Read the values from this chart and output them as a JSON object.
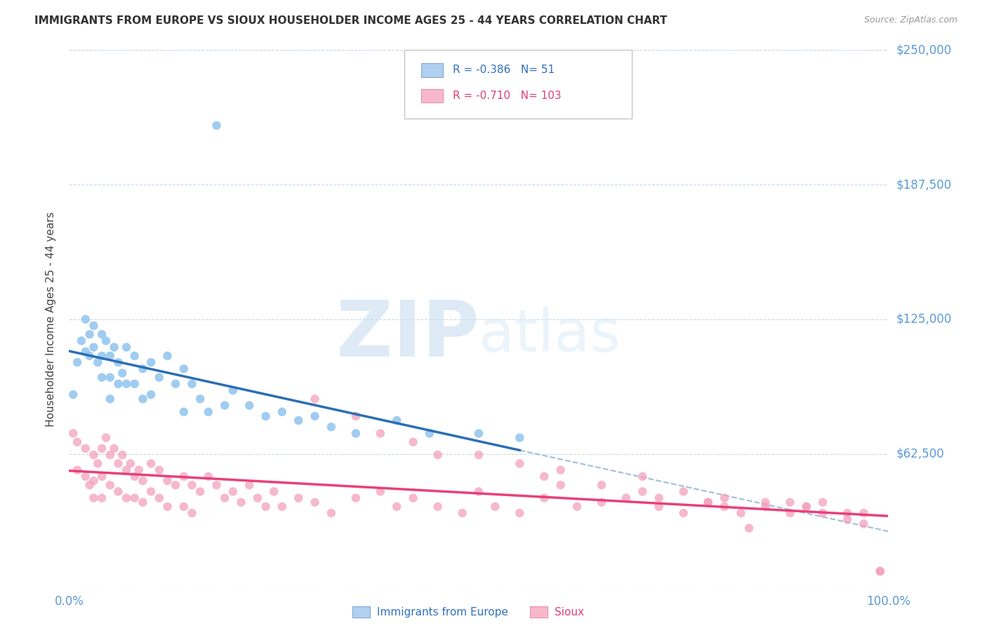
{
  "title": "IMMIGRANTS FROM EUROPE VS SIOUX HOUSEHOLDER INCOME AGES 25 - 44 YEARS CORRELATION CHART",
  "source": "Source: ZipAtlas.com",
  "ylabel": "Householder Income Ages 25 - 44 years",
  "yticks": [
    0,
    62500,
    125000,
    187500,
    250000
  ],
  "ytick_labels": [
    "",
    "$62,500",
    "$125,000",
    "$187,500",
    "$250,000"
  ],
  "xlim": [
    0.0,
    1.0
  ],
  "ylim": [
    0,
    250000
  ],
  "legend1_label": "Immigrants from Europe",
  "legend2_label": "Sioux",
  "R1": "-0.386",
  "N1": "51",
  "R2": "-0.710",
  "N2": "103",
  "color_blue_scatter": "#90c4ef",
  "color_pink_scatter": "#f4a0bc",
  "color_blue_line": "#2a6fb5",
  "color_pink_line": "#e8407a",
  "color_dash": "#a0bcd8",
  "blue_scatter_x": [
    0.005,
    0.01,
    0.015,
    0.02,
    0.02,
    0.025,
    0.025,
    0.03,
    0.03,
    0.035,
    0.04,
    0.04,
    0.04,
    0.045,
    0.05,
    0.05,
    0.05,
    0.055,
    0.06,
    0.06,
    0.065,
    0.07,
    0.07,
    0.08,
    0.08,
    0.09,
    0.09,
    0.1,
    0.1,
    0.11,
    0.12,
    0.13,
    0.14,
    0.14,
    0.15,
    0.16,
    0.17,
    0.18,
    0.19,
    0.2,
    0.22,
    0.24,
    0.26,
    0.28,
    0.3,
    0.32,
    0.35,
    0.4,
    0.44,
    0.5,
    0.55
  ],
  "blue_scatter_y": [
    90000,
    105000,
    115000,
    110000,
    125000,
    118000,
    108000,
    122000,
    112000,
    105000,
    118000,
    108000,
    98000,
    115000,
    108000,
    98000,
    88000,
    112000,
    105000,
    95000,
    100000,
    112000,
    95000,
    108000,
    95000,
    102000,
    88000,
    105000,
    90000,
    98000,
    108000,
    95000,
    102000,
    82000,
    95000,
    88000,
    82000,
    215000,
    85000,
    92000,
    85000,
    80000,
    82000,
    78000,
    80000,
    75000,
    72000,
    78000,
    72000,
    72000,
    70000
  ],
  "pink_scatter_x": [
    0.005,
    0.01,
    0.01,
    0.02,
    0.02,
    0.025,
    0.03,
    0.03,
    0.03,
    0.035,
    0.04,
    0.04,
    0.04,
    0.045,
    0.05,
    0.05,
    0.055,
    0.06,
    0.06,
    0.065,
    0.07,
    0.07,
    0.075,
    0.08,
    0.08,
    0.085,
    0.09,
    0.09,
    0.1,
    0.1,
    0.11,
    0.11,
    0.12,
    0.12,
    0.13,
    0.14,
    0.14,
    0.15,
    0.15,
    0.16,
    0.17,
    0.18,
    0.19,
    0.2,
    0.21,
    0.22,
    0.23,
    0.24,
    0.25,
    0.26,
    0.28,
    0.3,
    0.32,
    0.35,
    0.38,
    0.4,
    0.42,
    0.45,
    0.48,
    0.5,
    0.52,
    0.55,
    0.58,
    0.6,
    0.62,
    0.65,
    0.68,
    0.7,
    0.72,
    0.75,
    0.78,
    0.8,
    0.82,
    0.85,
    0.88,
    0.9,
    0.92,
    0.95,
    0.97,
    0.99,
    0.3,
    0.35,
    0.38,
    0.42,
    0.45,
    0.5,
    0.55,
    0.58,
    0.6,
    0.65,
    0.7,
    0.75,
    0.8,
    0.85,
    0.88,
    0.9,
    0.92,
    0.95,
    0.97,
    0.99,
    0.72,
    0.78,
    0.83
  ],
  "pink_scatter_y": [
    72000,
    68000,
    55000,
    65000,
    52000,
    48000,
    62000,
    50000,
    42000,
    58000,
    65000,
    52000,
    42000,
    70000,
    62000,
    48000,
    65000,
    58000,
    45000,
    62000,
    55000,
    42000,
    58000,
    52000,
    42000,
    55000,
    50000,
    40000,
    58000,
    45000,
    55000,
    42000,
    50000,
    38000,
    48000,
    52000,
    38000,
    48000,
    35000,
    45000,
    52000,
    48000,
    42000,
    45000,
    40000,
    48000,
    42000,
    38000,
    45000,
    38000,
    42000,
    40000,
    35000,
    42000,
    45000,
    38000,
    42000,
    38000,
    35000,
    45000,
    38000,
    35000,
    42000,
    48000,
    38000,
    40000,
    42000,
    45000,
    38000,
    35000,
    40000,
    38000,
    35000,
    40000,
    35000,
    38000,
    40000,
    35000,
    35000,
    8000,
    88000,
    80000,
    72000,
    68000,
    62000,
    62000,
    58000,
    52000,
    55000,
    48000,
    52000,
    45000,
    42000,
    38000,
    40000,
    38000,
    35000,
    32000,
    30000,
    8000,
    42000,
    40000,
    28000
  ]
}
